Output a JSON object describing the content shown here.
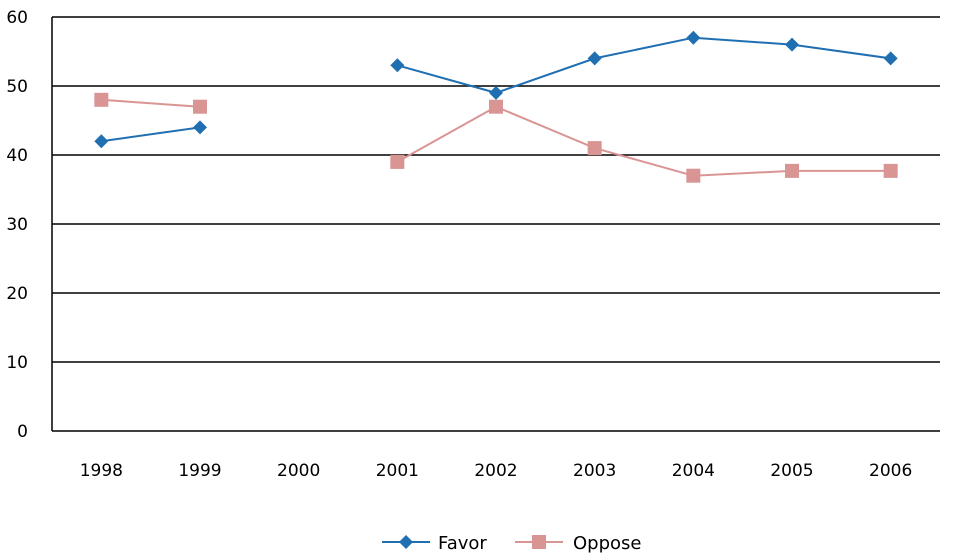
{
  "chart_data": {
    "type": "line",
    "categories": [
      "1998",
      "1999",
      "2000",
      "2001",
      "2002",
      "2003",
      "2004",
      "2005",
      "2006"
    ],
    "series": [
      {
        "name": "Favor",
        "color": "#1f6fb2",
        "marker": "diamond",
        "values": [
          42,
          44,
          null,
          53,
          49,
          54,
          57,
          56,
          54
        ]
      },
      {
        "name": "Oppose",
        "color": "#d99594",
        "marker": "square",
        "values": [
          48,
          47,
          null,
          39,
          47,
          41,
          37,
          37.7,
          37.7
        ]
      }
    ],
    "ylim": [
      0,
      60
    ],
    "yticks": [
      "0",
      "10",
      "20",
      "30",
      "40",
      "50",
      "60"
    ],
    "grid": true,
    "legend": "bottom",
    "title": "",
    "xlabel": "",
    "ylabel": ""
  }
}
